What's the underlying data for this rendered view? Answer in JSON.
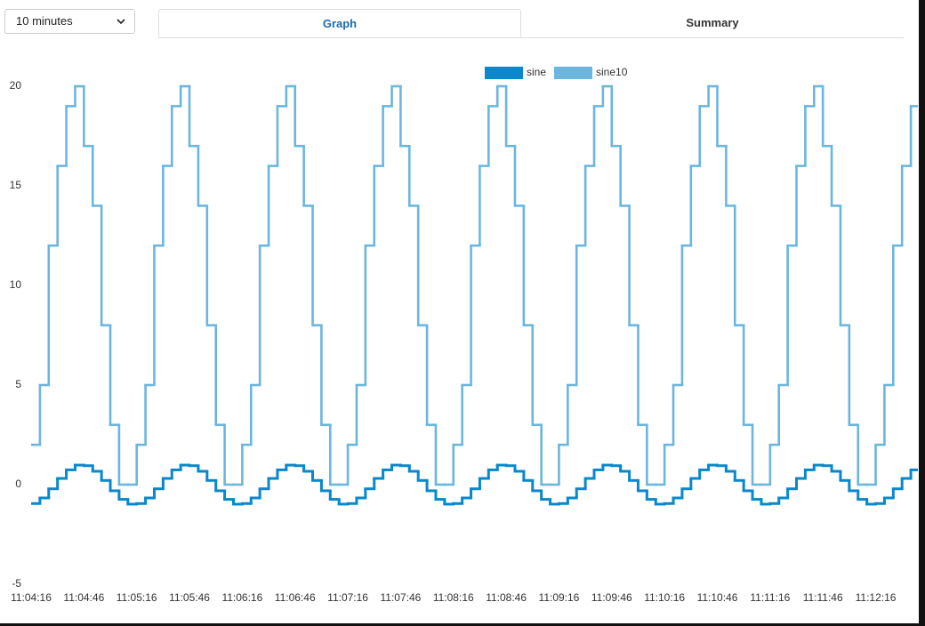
{
  "controls": {
    "range_select": "10 minutes",
    "tabs": [
      "Graph",
      "Summary"
    ]
  },
  "chart_data": {
    "type": "line",
    "step": true,
    "grid": true,
    "legend": "top",
    "x": [
      "11:04:16",
      "11:04:21",
      "11:04:26",
      "11:04:31",
      "11:04:36",
      "11:04:41",
      "11:04:46",
      "11:04:51",
      "11:04:56",
      "11:05:01",
      "11:05:06",
      "11:05:11",
      "11:05:16",
      "11:05:21",
      "11:05:26",
      "11:05:31",
      "11:05:36",
      "11:05:41",
      "11:05:46",
      "11:05:51",
      "11:05:56",
      "11:06:01",
      "11:06:06",
      "11:06:11",
      "11:06:16",
      "11:06:21",
      "11:06:26",
      "11:06:31",
      "11:06:36",
      "11:06:41",
      "11:06:46",
      "11:06:51",
      "11:06:56",
      "11:07:01",
      "11:07:06",
      "11:07:11",
      "11:07:16",
      "11:07:21",
      "11:07:26",
      "11:07:31",
      "11:07:36",
      "11:07:41",
      "11:07:46",
      "11:07:51",
      "11:07:56",
      "11:08:01",
      "11:08:06",
      "11:08:11",
      "11:08:16",
      "11:08:21",
      "11:08:26",
      "11:08:31",
      "11:08:36",
      "11:08:41",
      "11:08:46",
      "11:08:51",
      "11:08:56",
      "11:09:01",
      "11:09:06",
      "11:09:11",
      "11:09:16",
      "11:09:21",
      "11:09:26",
      "11:09:31",
      "11:09:36",
      "11:09:41",
      "11:09:46",
      "11:09:51",
      "11:09:56",
      "11:10:01",
      "11:10:06",
      "11:10:11",
      "11:10:16",
      "11:10:21",
      "11:10:26",
      "11:10:31",
      "11:10:36",
      "11:10:41",
      "11:10:46",
      "11:10:51",
      "11:10:56",
      "11:11:01",
      "11:11:06",
      "11:11:11",
      "11:11:16",
      "11:11:21",
      "11:11:26",
      "11:11:31",
      "11:11:36",
      "11:11:41",
      "11:11:46",
      "11:11:51",
      "11:11:56",
      "11:12:01",
      "11:12:06",
      "11:12:11",
      "11:12:16",
      "11:12:21",
      "11:12:26",
      "11:12:31",
      "11:12:36"
    ],
    "xlim": [
      "11:04:16",
      "11:12:40"
    ],
    "xticks": [
      "11:04:16",
      "11:04:46",
      "11:05:16",
      "11:05:46",
      "11:06:16",
      "11:06:46",
      "11:07:16",
      "11:07:46",
      "11:08:16",
      "11:08:46",
      "11:09:16",
      "11:09:46",
      "11:10:16",
      "11:10:46",
      "11:11:16",
      "11:11:46",
      "11:12:16"
    ],
    "ylim": [
      -5,
      20
    ],
    "yticks": [
      -5,
      0,
      5,
      10,
      15,
      20
    ],
    "series": [
      {
        "name": "sine",
        "color": "#0a88cc",
        "values": [
          -0.95,
          -0.67,
          -0.21,
          0.31,
          0.74,
          0.98,
          0.95,
          0.67,
          0.21,
          -0.31,
          -0.74,
          -0.98,
          -0.95,
          -0.67,
          -0.21,
          0.31,
          0.74,
          0.98,
          0.95,
          0.67,
          0.21,
          -0.31,
          -0.74,
          -0.98,
          -0.95,
          -0.67,
          -0.21,
          0.31,
          0.74,
          0.98,
          0.95,
          0.67,
          0.21,
          -0.31,
          -0.74,
          -0.98,
          -0.95,
          -0.67,
          -0.21,
          0.31,
          0.74,
          0.98,
          0.95,
          0.67,
          0.21,
          -0.31,
          -0.74,
          -0.98,
          -0.95,
          -0.67,
          -0.21,
          0.31,
          0.74,
          0.98,
          0.95,
          0.67,
          0.21,
          -0.31,
          -0.74,
          -0.98,
          -0.95,
          -0.67,
          -0.21,
          0.31,
          0.74,
          0.98,
          0.95,
          0.67,
          0.21,
          -0.31,
          -0.74,
          -0.98,
          -0.95,
          -0.67,
          -0.21,
          0.31,
          0.74,
          0.98,
          0.95,
          0.67,
          0.21,
          -0.31,
          -0.74,
          -0.98,
          -0.95,
          -0.67,
          -0.21,
          0.31,
          0.74,
          0.98,
          0.95,
          0.67,
          0.21,
          -0.31,
          -0.74,
          -0.98,
          -0.95,
          -0.67,
          -0.21,
          0.31,
          0.74
        ]
      },
      {
        "name": "sine10",
        "color": "#6cb6de",
        "values": [
          2,
          5,
          12,
          16,
          19,
          20,
          17,
          14,
          8,
          3,
          0,
          0,
          2,
          5,
          12,
          16,
          19,
          20,
          17,
          14,
          8,
          3,
          0,
          0,
          2,
          5,
          12,
          16,
          19,
          20,
          17,
          14,
          8,
          3,
          0,
          0,
          2,
          5,
          12,
          16,
          19,
          20,
          17,
          14,
          8,
          3,
          0,
          0,
          2,
          5,
          12,
          16,
          19,
          20,
          17,
          14,
          8,
          3,
          0,
          0,
          2,
          5,
          12,
          16,
          19,
          20,
          17,
          14,
          8,
          3,
          0,
          0,
          2,
          5,
          12,
          16,
          19,
          20,
          17,
          14,
          8,
          3,
          0,
          0,
          2,
          5,
          12,
          16,
          19,
          20,
          17,
          14,
          8,
          3,
          0,
          0,
          2,
          5,
          12,
          16,
          19
        ]
      }
    ]
  }
}
